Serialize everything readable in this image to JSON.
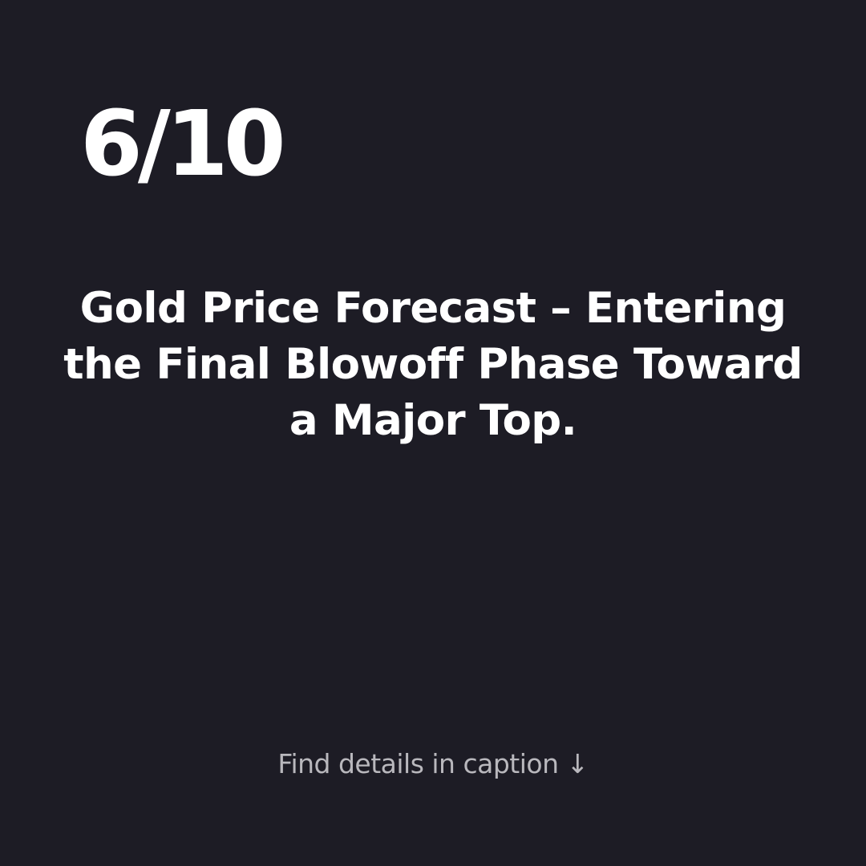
{
  "slide": {
    "counter": "6/10",
    "headline": "Gold Price Forecast – Entering the Final Blowoff Phase Toward a Major Top.",
    "cta": "Find details in caption ↓"
  },
  "colors": {
    "background": "#1d1c25",
    "text": "#ffffff",
    "muted_text": "#b9b8bd"
  }
}
